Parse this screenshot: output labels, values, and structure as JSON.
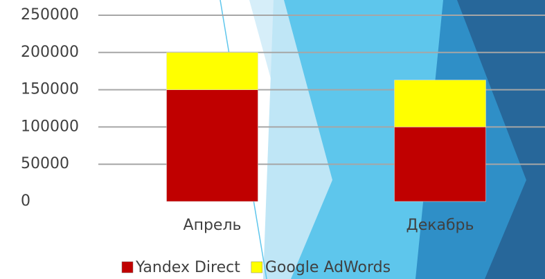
{
  "chart_data": {
    "type": "stacked_bar",
    "categories": [
      "Апрель",
      "Декабрь"
    ],
    "series": [
      {
        "name": "Yandex Direct",
        "color": "#c00000",
        "values": [
          150000,
          100000
        ]
      },
      {
        "name": "Google AdWords",
        "color": "#ffff00",
        "values": [
          50000,
          63000
        ]
      }
    ],
    "ylim": [
      0,
      250000
    ],
    "yticks": [
      0,
      50000,
      100000,
      150000,
      200000,
      250000
    ],
    "grid": true,
    "legend": "bottom"
  }
}
